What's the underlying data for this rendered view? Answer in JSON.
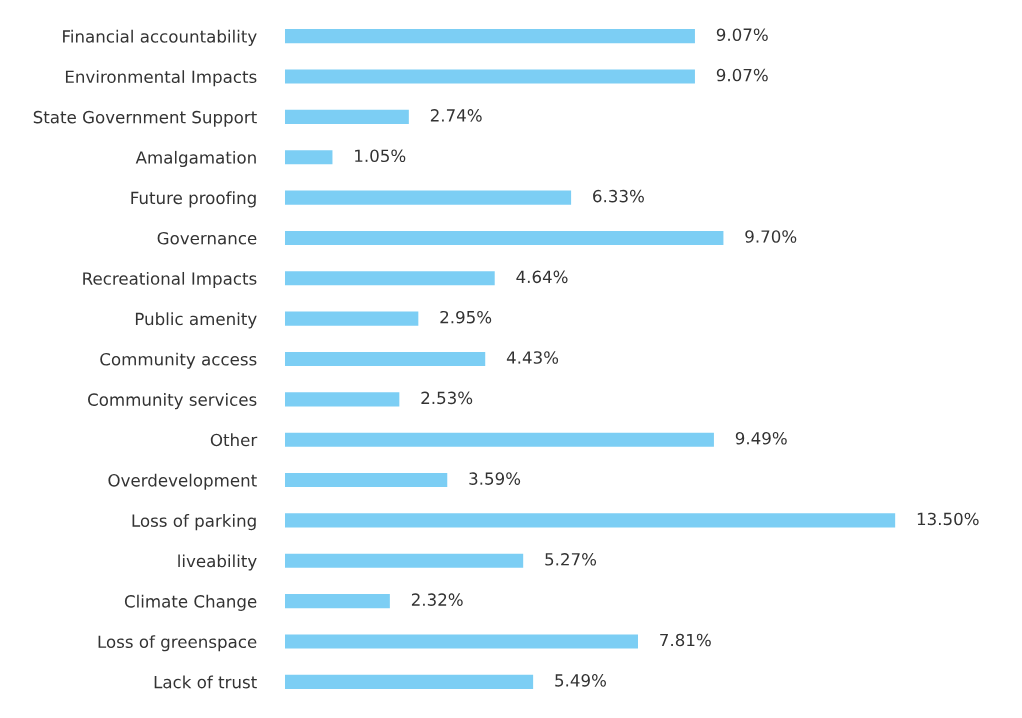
{
  "chart_data": {
    "type": "bar",
    "orientation": "horizontal",
    "categories": [
      "Financial accountability",
      "Environmental Impacts",
      "State Government Support",
      "Amalgamation",
      "Future proofing",
      "Governance",
      "Recreational Impacts",
      "Public amenity",
      "Community access",
      "Community services",
      "Other",
      "Overdevelopment",
      "Loss of parking",
      "liveability",
      "Climate Change",
      "Loss of greenspace",
      "Lack of trust"
    ],
    "values": [
      9.07,
      9.07,
      2.74,
      1.05,
      6.33,
      9.7,
      4.64,
      2.95,
      4.43,
      2.53,
      9.49,
      3.59,
      13.5,
      5.27,
      2.32,
      7.81,
      5.49
    ],
    "value_labels": [
      "9.07%",
      "9.07%",
      "2.74%",
      "1.05%",
      "6.33%",
      "9.70%",
      "4.64%",
      "2.95%",
      "4.43%",
      "2.53%",
      "9.49%",
      "3.59%",
      "13.50%",
      "5.27%",
      "2.32%",
      "7.81%",
      "5.49%"
    ],
    "color": "#7ccef4",
    "grid": false,
    "legend": false
  }
}
